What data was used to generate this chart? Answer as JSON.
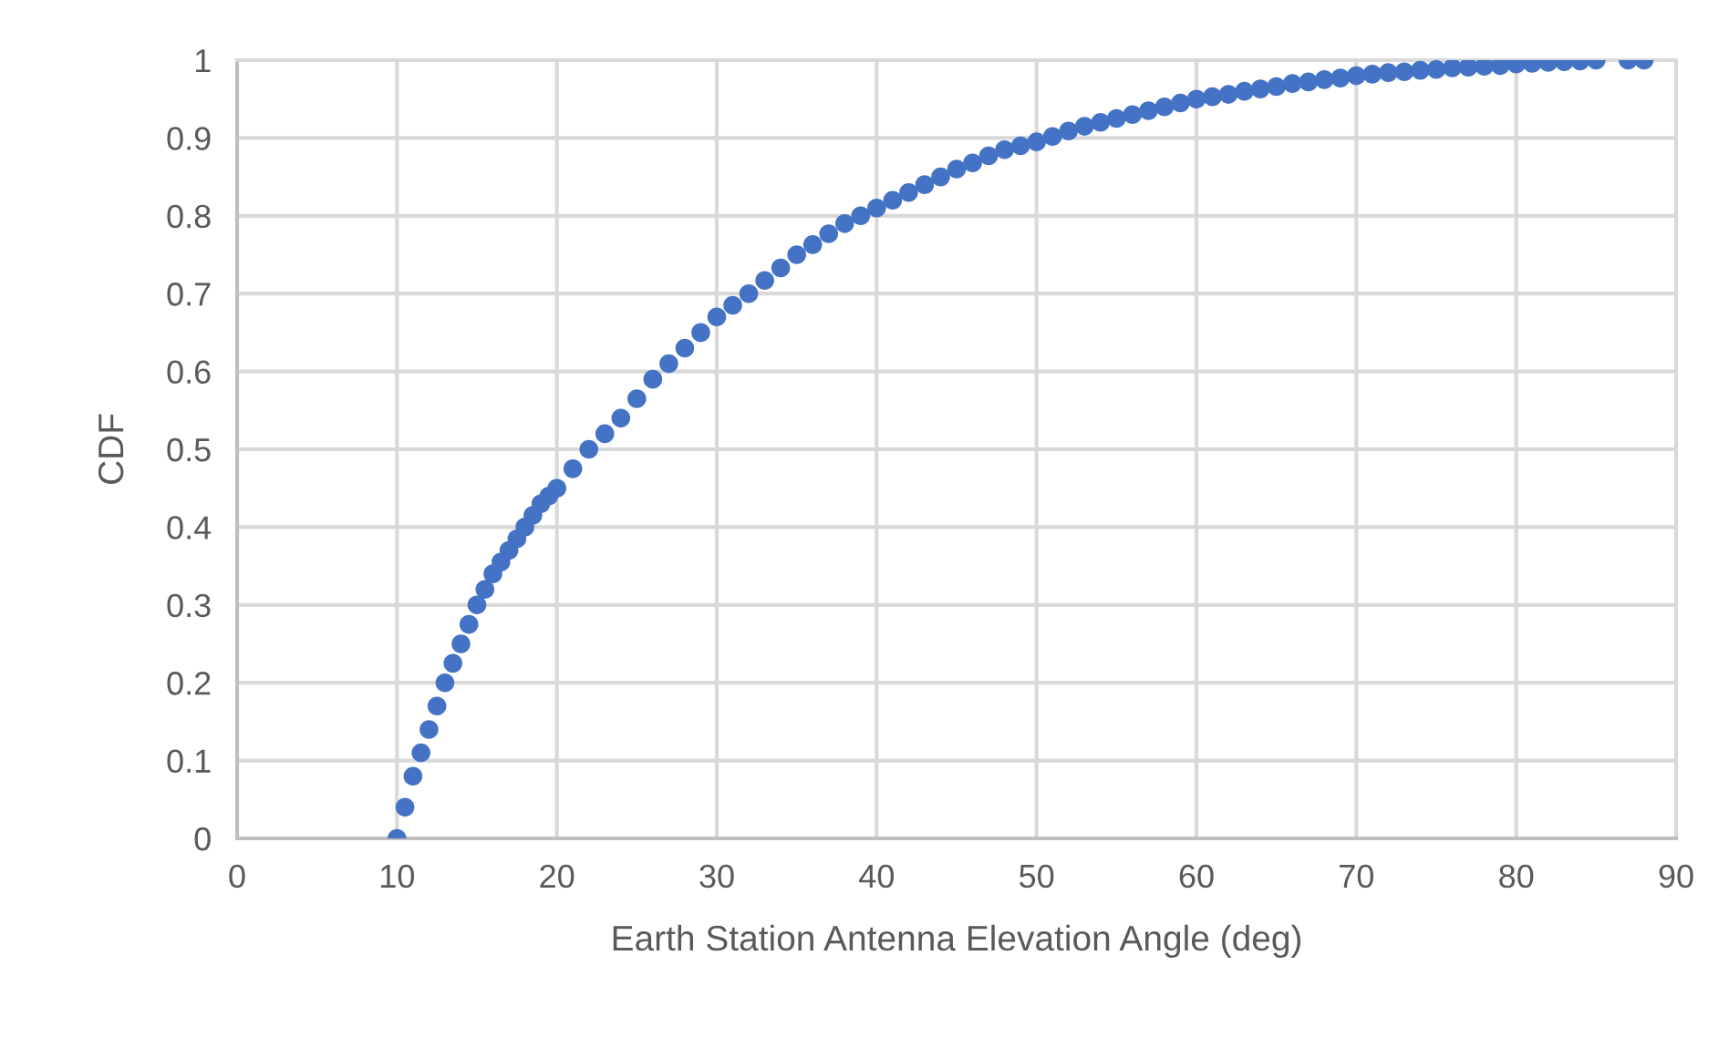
{
  "chart_data": {
    "type": "scatter",
    "xlabel": "Earth Station Antenna Elevation Angle (deg)",
    "ylabel": "CDF",
    "marker": "circle",
    "series": [
      {
        "color": "#4472c4",
        "x": [
          10,
          10.5,
          11,
          11.5,
          12,
          12.5,
          13,
          13.5,
          14,
          14.5,
          15,
          15.5,
          16,
          16.5,
          17,
          17.5,
          18,
          18.5,
          19,
          19.5,
          20,
          21,
          22,
          23,
          24,
          25,
          26,
          27,
          28,
          29,
          30,
          31,
          32,
          33,
          34,
          35,
          36,
          37,
          38,
          39,
          40,
          41,
          42,
          43,
          44,
          45,
          46,
          47,
          48,
          49,
          50,
          51,
          52,
          53,
          54,
          55,
          56,
          57,
          58,
          59,
          60,
          61,
          62,
          63,
          64,
          65,
          66,
          67,
          68,
          69,
          70,
          71,
          72,
          73,
          74,
          75,
          76,
          77,
          78,
          79,
          80,
          81,
          82,
          83,
          84,
          85,
          87,
          88
        ],
        "values": [
          0,
          0.04,
          0.08,
          0.11,
          0.14,
          0.17,
          0.2,
          0.225,
          0.25,
          0.275,
          0.3,
          0.32,
          0.34,
          0.355,
          0.37,
          0.385,
          0.4,
          0.415,
          0.43,
          0.44,
          0.45,
          0.475,
          0.5,
          0.52,
          0.54,
          0.565,
          0.59,
          0.61,
          0.63,
          0.65,
          0.67,
          0.685,
          0.7,
          0.717,
          0.733,
          0.75,
          0.763,
          0.777,
          0.79,
          0.8,
          0.81,
          0.82,
          0.83,
          0.84,
          0.85,
          0.86,
          0.868,
          0.877,
          0.885,
          0.89,
          0.895,
          0.902,
          0.909,
          0.915,
          0.92,
          0.925,
          0.93,
          0.935,
          0.94,
          0.945,
          0.95,
          0.953,
          0.956,
          0.96,
          0.963,
          0.966,
          0.97,
          0.972,
          0.975,
          0.977,
          0.98,
          0.982,
          0.984,
          0.985,
          0.987,
          0.988,
          0.99,
          0.991,
          0.992,
          0.993,
          0.995,
          0.996,
          0.997,
          0.998,
          0.999,
          1,
          1,
          1
        ]
      }
    ],
    "xlim": [
      0,
      90
    ],
    "xticks": [
      0,
      10,
      20,
      30,
      40,
      50,
      60,
      70,
      80,
      90
    ],
    "ylim": [
      0,
      1
    ],
    "yticks": [
      0,
      0.1,
      0.2,
      0.3,
      0.4,
      0.5,
      0.6,
      0.7,
      0.8,
      0.9,
      1
    ],
    "grid": true
  }
}
